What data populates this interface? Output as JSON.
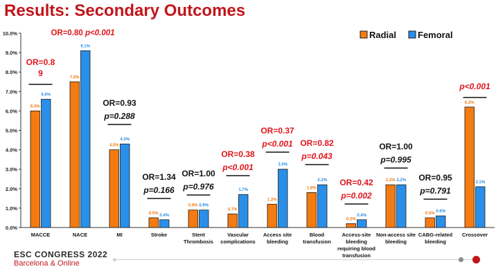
{
  "slide_title": "Results: Secondary Outcomes",
  "footer": {
    "congress": "ESC CONGRESS 2022",
    "location": "Barcelona & Online"
  },
  "colors": {
    "radial": "#f47b12",
    "femoral": "#2a8fe8",
    "stat_red": "#e0161b",
    "stat_black": "#111111"
  },
  "chart_data": {
    "type": "bar",
    "ylim": [
      0,
      10
    ],
    "ytick_labels": [
      "0.0%",
      "1.0%",
      "2.0%",
      "3.0%",
      "4.0%",
      "5.0%",
      "6.0%",
      "7.0%",
      "8.0%",
      "9.0%",
      "10.0%"
    ],
    "legend_position": "top-right",
    "categories": [
      [
        "MACCE"
      ],
      [
        "NACE"
      ],
      [
        "MI"
      ],
      [
        "Stroke"
      ],
      [
        "Stent",
        "Thrombosis"
      ],
      [
        "Vascular",
        "complications"
      ],
      [
        "Access site",
        "bleeding"
      ],
      [
        "Blood",
        "transfusion"
      ],
      [
        "Access-site",
        "bleeding",
        "requiring blood",
        "transfusion"
      ],
      [
        "Non-access site",
        "bleeding"
      ],
      [
        "CABG-related",
        "bleeding"
      ],
      [
        "Crossover"
      ]
    ],
    "series": [
      {
        "name": "Radial",
        "values": [
          6.0,
          7.5,
          4.0,
          0.5,
          0.9,
          0.7,
          1.2,
          1.8,
          0.2,
          2.2,
          0.5,
          6.2
        ],
        "labels": [
          "6.0%",
          "7.5%",
          "4.0%",
          "0.5%",
          "0.9%",
          "0.7%",
          "1.2%",
          "1.8%",
          "0.2%",
          "2.2%",
          "0.5%",
          "6.2%"
        ]
      },
      {
        "name": "Femoral",
        "values": [
          6.6,
          9.1,
          4.3,
          0.4,
          0.9,
          1.7,
          3.0,
          2.2,
          0.4,
          2.2,
          0.6,
          2.1
        ],
        "labels": [
          "6.6%",
          "9.1%",
          "4.3%",
          "0.4%",
          "0.9%",
          "1.7%",
          "3.0%",
          "2.2%",
          "0.4%",
          "2.2%",
          "0.6%",
          "2.1%"
        ]
      }
    ],
    "annotations": [
      {
        "category": 0,
        "or_lines": [
          "OR=0.8",
          "9"
        ],
        "p": "",
        "color": "red",
        "layout": "stacked"
      },
      {
        "category": 1,
        "or_lines": [
          "OR=0.80"
        ],
        "p": "p<0.001",
        "color": "red",
        "layout": "inline"
      },
      {
        "category": 2,
        "or_lines": [
          "OR=0.93"
        ],
        "p": "p=0.288",
        "color": "black",
        "layout": "stacked"
      },
      {
        "category": 3,
        "or_lines": [
          "OR=1.34"
        ],
        "p": "p=0.166",
        "color": "black",
        "layout": "stacked"
      },
      {
        "category": 4,
        "or_lines": [
          "OR=1.00"
        ],
        "p": "p=0.976",
        "color": "black",
        "layout": "stacked"
      },
      {
        "category": 5,
        "or_lines": [
          "OR=0.38"
        ],
        "p": "p<0.001",
        "color": "red",
        "layout": "stacked"
      },
      {
        "category": 6,
        "or_lines": [
          "OR=0.37"
        ],
        "p": "p<0.001",
        "color": "red",
        "layout": "stacked"
      },
      {
        "category": 7,
        "or_lines": [
          "OR=0.82"
        ],
        "p": "p=0.043",
        "color": "red",
        "layout": "stacked"
      },
      {
        "category": 8,
        "or_lines": [
          "OR=0.42"
        ],
        "p": "p=0.002",
        "color": "red",
        "layout": "stacked"
      },
      {
        "category": 9,
        "or_lines": [
          "OR=1.00"
        ],
        "p": "p=0.995",
        "color": "black",
        "layout": "stacked"
      },
      {
        "category": 10,
        "or_lines": [
          "OR=0.95"
        ],
        "p": "p=0.791",
        "color": "black",
        "layout": "stacked"
      },
      {
        "category": 11,
        "or_lines": [],
        "p": "p<0.001",
        "color": "red",
        "layout": "stacked"
      }
    ]
  }
}
